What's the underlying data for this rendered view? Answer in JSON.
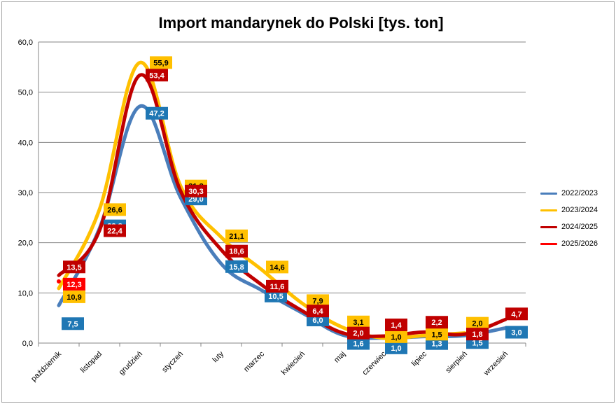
{
  "chart_data": {
    "type": "line",
    "title": "Import mandarynek do Polski [tys. ton]",
    "xlabel": "",
    "ylabel": "",
    "ylim": [
      0,
      60
    ],
    "yticks": [
      "0,0",
      "10,0",
      "20,0",
      "30,0",
      "40,0",
      "50,0",
      "60,0"
    ],
    "grid": true,
    "legend_position": "right",
    "categories": [
      "październik",
      "listopad",
      "grudzień",
      "styczeń",
      "luty",
      "marzec",
      "kwiecień",
      "maj",
      "czerwiec",
      "lipiec",
      "sierpień",
      "wrzesień"
    ],
    "series": [
      {
        "name": "2022/2023",
        "color": "#4a7ebb",
        "label_bg": "#1f77b4",
        "values": [
          7.5,
          22.8,
          47.2,
          29.0,
          15.8,
          10.5,
          6.0,
          1.6,
          1.0,
          1.3,
          1.5,
          3.0
        ],
        "labels": [
          "7,5",
          "22,8",
          "47,2",
          "29,0",
          "15,8",
          "10,5",
          "6,0",
          "1,6",
          "1,0",
          "1,3",
          "1,5",
          "3,0"
        ]
      },
      {
        "name": "2023/2024",
        "color": "#ffc000",
        "label_bg": "#ffc000",
        "values": [
          10.9,
          26.6,
          55.9,
          31.3,
          21.1,
          14.6,
          7.9,
          3.1,
          1.0,
          1.5,
          2.0,
          null
        ],
        "labels": [
          "10,9",
          "26,6",
          "55,9",
          "31,3",
          "21,1",
          "14,6",
          "7,9",
          "3,1",
          "1,0",
          "1,5",
          "2,0",
          ""
        ]
      },
      {
        "name": "2024/2025",
        "color": "#c00000",
        "label_bg": "#c00000",
        "values": [
          13.5,
          22.4,
          53.4,
          30.3,
          18.6,
          11.6,
          6.4,
          2.0,
          1.4,
          2.2,
          1.8,
          4.7
        ],
        "labels": [
          "13,5",
          "22,4",
          "53,4",
          "30,3",
          "18,6",
          "11,6",
          "6,4",
          "2,0",
          "1,4",
          "2,2",
          "1,8",
          "4,7"
        ]
      },
      {
        "name": "2025/2026",
        "color": "#ff0000",
        "label_bg": "#ff0000",
        "values": [
          12.3,
          null,
          null,
          null,
          null,
          null,
          null,
          null,
          null,
          null,
          null,
          null
        ],
        "labels": [
          "12,3",
          "",
          "",
          "",
          "",
          "",
          "",
          "",
          "",
          "",
          "",
          ""
        ]
      }
    ]
  }
}
